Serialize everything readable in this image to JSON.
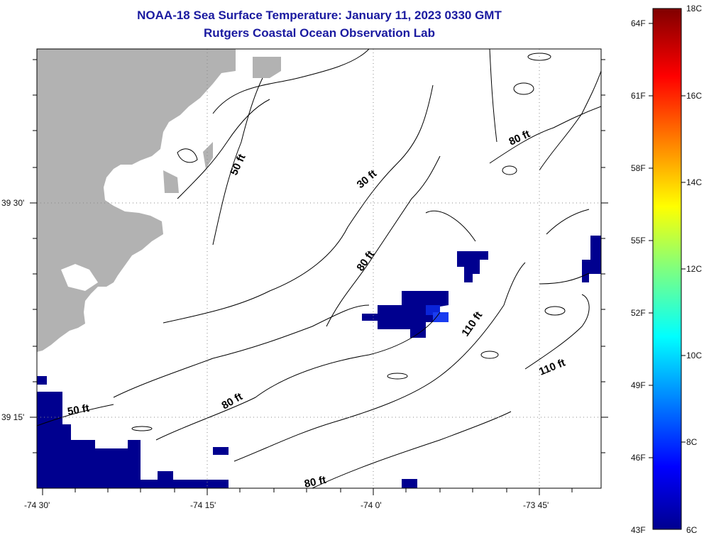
{
  "title": "NOAA-18 Sea Surface Temperature:  January 11, 2023 0330 GMT",
  "subtitle": "Rutgers Coastal Ocean Observation Lab",
  "x_ticks": [
    "-74 30'",
    "-74 15'",
    "-74 0'",
    "-73 45'"
  ],
  "y_ticks": [
    "39 30'",
    "39 15'"
  ],
  "contour_labels": [
    "50 ft",
    "50 ft",
    "30 ft",
    "80 ft",
    "80 ft",
    "80 ft",
    "80 ft",
    "110 ft",
    "110 ft"
  ],
  "colorbar": {
    "f_labels": [
      "64F",
      "61F",
      "58F",
      "55F",
      "52F",
      "49F",
      "46F",
      "43F"
    ],
    "c_labels": [
      "18C",
      "16C",
      "14C",
      "12C",
      "10C",
      "8C",
      "6C"
    ]
  },
  "colors": {
    "land": "#b2b2b2",
    "cold_water": "#00008f",
    "title": "#1a1aa0"
  }
}
